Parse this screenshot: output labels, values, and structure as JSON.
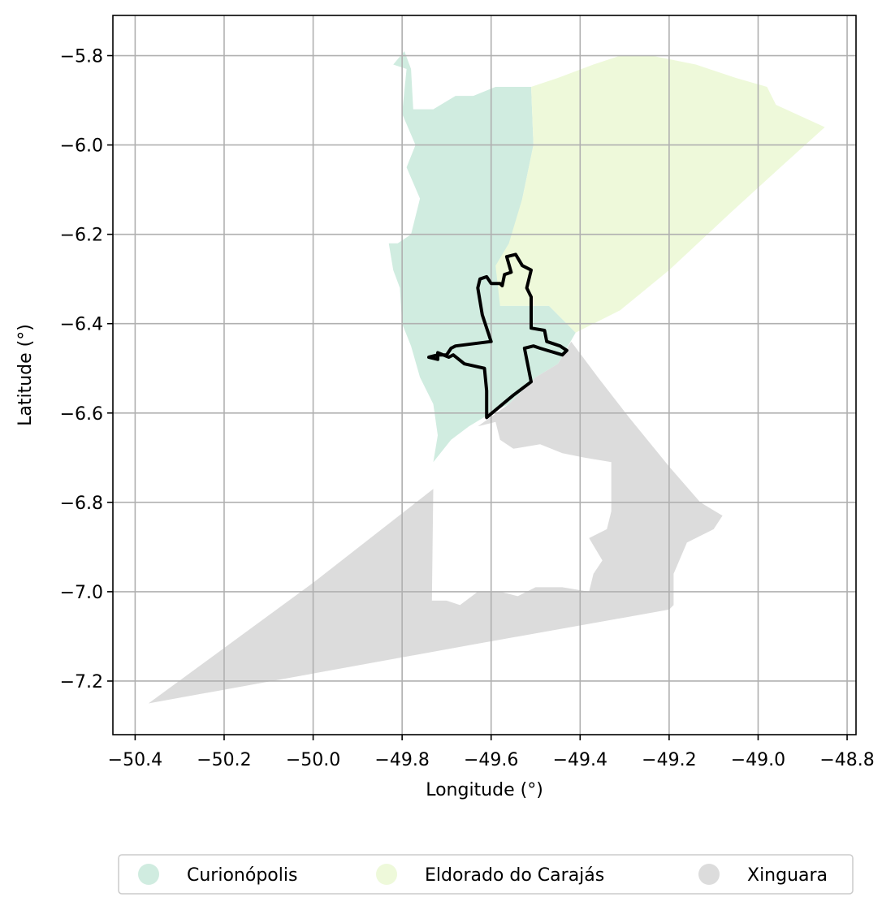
{
  "map": {
    "xlabel": "Longitude (°)",
    "ylabel": "Latitude (°)",
    "x_ticks": [
      {
        "value": -50.4,
        "label": "−50.4"
      },
      {
        "value": -50.2,
        "label": "−50.2"
      },
      {
        "value": -50.0,
        "label": "−50.0"
      },
      {
        "value": -49.8,
        "label": "−49.8"
      },
      {
        "value": -49.6,
        "label": "−49.6"
      },
      {
        "value": -49.4,
        "label": "−49.4"
      },
      {
        "value": -49.2,
        "label": "−49.2"
      },
      {
        "value": -49.0,
        "label": "−49.0"
      },
      {
        "value": -48.8,
        "label": "−48.8"
      }
    ],
    "y_ticks": [
      {
        "value": -5.8,
        "label": "−5.8"
      },
      {
        "value": -6.0,
        "label": "−6.0"
      },
      {
        "value": -6.2,
        "label": "−6.2"
      },
      {
        "value": -6.4,
        "label": "−6.4"
      },
      {
        "value": -6.6,
        "label": "−6.6"
      },
      {
        "value": -6.8,
        "label": "−6.8"
      },
      {
        "value": -7.0,
        "label": "−7.0"
      },
      {
        "value": -7.2,
        "label": "−7.2"
      }
    ],
    "xlim": [
      -50.45,
      -48.78
    ],
    "ylim": [
      -7.32,
      -5.71
    ],
    "grid": true,
    "legend_position": "bottom-center",
    "regions": [
      {
        "name": "Curionópolis",
        "color": "#d0ece0",
        "coords": [
          [
            -49.79,
            -5.83
          ],
          [
            -49.82,
            -5.82
          ],
          [
            -49.795,
            -5.79
          ],
          [
            -49.78,
            -5.83
          ],
          [
            -49.775,
            -5.92
          ],
          [
            -49.73,
            -5.92
          ],
          [
            -49.68,
            -5.89
          ],
          [
            -49.64,
            -5.89
          ],
          [
            -49.59,
            -5.87
          ],
          [
            -49.51,
            -5.87
          ],
          [
            -49.505,
            -6.0
          ],
          [
            -49.53,
            -6.12
          ],
          [
            -49.515,
            -6.2
          ],
          [
            -49.55,
            -6.27
          ],
          [
            -49.58,
            -6.36
          ],
          [
            -49.47,
            -6.36
          ],
          [
            -49.45,
            -6.38
          ],
          [
            -49.41,
            -6.42
          ],
          [
            -49.45,
            -6.49
          ],
          [
            -49.5,
            -6.52
          ],
          [
            -49.56,
            -6.58
          ],
          [
            -49.6,
            -6.6
          ],
          [
            -49.65,
            -6.63
          ],
          [
            -49.69,
            -6.66
          ],
          [
            -49.73,
            -6.71
          ],
          [
            -49.72,
            -6.65
          ],
          [
            -49.73,
            -6.58
          ],
          [
            -49.76,
            -6.52
          ],
          [
            -49.78,
            -6.45
          ],
          [
            -49.8,
            -6.4
          ],
          [
            -49.805,
            -6.32
          ],
          [
            -49.82,
            -6.28
          ],
          [
            -49.83,
            -6.22
          ],
          [
            -49.81,
            -6.22
          ],
          [
            -49.78,
            -6.2
          ],
          [
            -49.76,
            -6.12
          ],
          [
            -49.79,
            -6.05
          ],
          [
            -49.77,
            -6.0
          ],
          [
            -49.8,
            -5.93
          ]
        ]
      },
      {
        "name": "Eldorado do Carajás",
        "color": "#eef9da",
        "coords": [
          [
            -49.51,
            -5.87
          ],
          [
            -49.45,
            -5.85
          ],
          [
            -49.37,
            -5.82
          ],
          [
            -49.31,
            -5.8
          ],
          [
            -49.24,
            -5.8
          ],
          [
            -49.14,
            -5.82
          ],
          [
            -49.05,
            -5.85
          ],
          [
            -48.98,
            -5.87
          ],
          [
            -48.96,
            -5.91
          ],
          [
            -48.85,
            -5.96
          ],
          [
            -48.95,
            -6.05
          ],
          [
            -49.06,
            -6.15
          ],
          [
            -49.2,
            -6.28
          ],
          [
            -49.31,
            -6.37
          ],
          [
            -49.41,
            -6.42
          ],
          [
            -49.45,
            -6.38
          ],
          [
            -49.47,
            -6.36
          ],
          [
            -49.58,
            -6.36
          ],
          [
            -49.59,
            -6.27
          ],
          [
            -49.56,
            -6.22
          ],
          [
            -49.53,
            -6.12
          ],
          [
            -49.505,
            -6.0
          ]
        ]
      },
      {
        "name": "Xinguara",
        "color": "#dcdcdc",
        "coords": [
          [
            -49.42,
            -6.44
          ],
          [
            -49.36,
            -6.52
          ],
          [
            -49.29,
            -6.61
          ],
          [
            -49.2,
            -6.72
          ],
          [
            -49.13,
            -6.8
          ],
          [
            -49.08,
            -6.83
          ],
          [
            -49.1,
            -6.86
          ],
          [
            -49.16,
            -6.89
          ],
          [
            -49.19,
            -6.96
          ],
          [
            -49.19,
            -7.03
          ],
          [
            -49.2,
            -7.04
          ],
          [
            -49.65,
            -7.12
          ],
          [
            -50.37,
            -7.25
          ],
          [
            -50.0,
            -6.98
          ],
          [
            -49.73,
            -6.77
          ],
          [
            -49.733,
            -7.02
          ],
          [
            -49.7,
            -7.02
          ],
          [
            -49.67,
            -7.03
          ],
          [
            -49.63,
            -7.0
          ],
          [
            -49.58,
            -7.0
          ],
          [
            -49.54,
            -7.01
          ],
          [
            -49.5,
            -6.99
          ],
          [
            -49.44,
            -6.99
          ],
          [
            -49.38,
            -7.0
          ],
          [
            -49.37,
            -6.96
          ],
          [
            -49.35,
            -6.93
          ],
          [
            -49.38,
            -6.88
          ],
          [
            -49.34,
            -6.86
          ],
          [
            -49.33,
            -6.82
          ],
          [
            -49.33,
            -6.71
          ],
          [
            -49.39,
            -6.7
          ],
          [
            -49.44,
            -6.69
          ],
          [
            -49.49,
            -6.67
          ],
          [
            -49.55,
            -6.68
          ],
          [
            -49.58,
            -6.66
          ],
          [
            -49.59,
            -6.62
          ],
          [
            -49.63,
            -6.63
          ],
          [
            -49.56,
            -6.58
          ],
          [
            -49.5,
            -6.52
          ],
          [
            -49.45,
            -6.49
          ]
        ]
      }
    ],
    "outline": {
      "name": "study-area",
      "color": "#000000",
      "coords": [
        [
          -49.61,
          -6.61
        ],
        [
          -49.61,
          -6.55
        ],
        [
          -49.615,
          -6.5
        ],
        [
          -49.66,
          -6.49
        ],
        [
          -49.685,
          -6.47
        ],
        [
          -49.695,
          -6.475
        ],
        [
          -49.72,
          -6.465
        ],
        [
          -49.72,
          -6.48
        ],
        [
          -49.74,
          -6.475
        ],
        [
          -49.72,
          -6.47
        ],
        [
          -49.7,
          -6.47
        ],
        [
          -49.69,
          -6.455
        ],
        [
          -49.68,
          -6.45
        ],
        [
          -49.6,
          -6.44
        ],
        [
          -49.62,
          -6.38
        ],
        [
          -49.63,
          -6.32
        ],
        [
          -49.625,
          -6.3
        ],
        [
          -49.61,
          -6.295
        ],
        [
          -49.6,
          -6.31
        ],
        [
          -49.58,
          -6.31
        ],
        [
          -49.575,
          -6.315
        ],
        [
          -49.57,
          -6.29
        ],
        [
          -49.555,
          -6.285
        ],
        [
          -49.565,
          -6.25
        ],
        [
          -49.545,
          -6.245
        ],
        [
          -49.53,
          -6.27
        ],
        [
          -49.51,
          -6.28
        ],
        [
          -49.52,
          -6.32
        ],
        [
          -49.51,
          -6.34
        ],
        [
          -49.51,
          -6.41
        ],
        [
          -49.48,
          -6.415
        ],
        [
          -49.475,
          -6.44
        ],
        [
          -49.445,
          -6.45
        ],
        [
          -49.43,
          -6.46
        ],
        [
          -49.44,
          -6.47
        ],
        [
          -49.49,
          -6.455
        ],
        [
          -49.505,
          -6.45
        ],
        [
          -49.525,
          -6.455
        ],
        [
          -49.51,
          -6.53
        ],
        [
          -49.55,
          -6.56
        ],
        [
          -49.61,
          -6.61
        ]
      ]
    },
    "legend": [
      {
        "label": "Curionópolis",
        "color": "#d0ece0"
      },
      {
        "label": "Eldorado do Carajás",
        "color": "#eef9da"
      },
      {
        "label": "Xinguara",
        "color": "#dcdcdc"
      }
    ]
  }
}
